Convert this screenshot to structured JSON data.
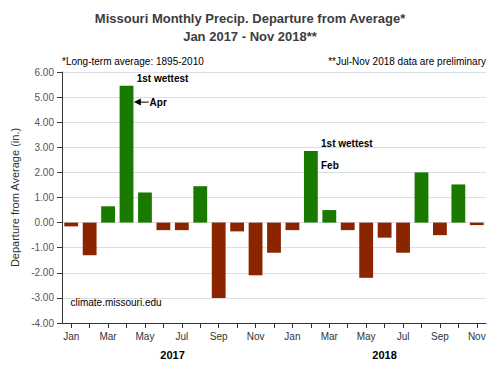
{
  "chart_data": {
    "type": "bar",
    "title": "Missouri Monthly Precip. Departure from Average*",
    "subtitle": "Jan 2017 - Nov 2018**",
    "footnote_left": "*Long-term average: 1895-2010",
    "footnote_right": "**Jul-Nov 2018 data are preliminary",
    "ylabel": "Departure from Average (in.)",
    "watermark": "climate.missouri.edu",
    "categories": [
      "Jan",
      null,
      "Mar",
      null,
      "May",
      null,
      "Jul",
      null,
      "Sep",
      null,
      "Nov",
      null,
      "Jan",
      null,
      "Mar",
      null,
      "May",
      null,
      "Jul",
      null,
      "Sep",
      null,
      "Nov"
    ],
    "values": [
      -0.15,
      -1.3,
      0.65,
      5.45,
      1.2,
      -0.3,
      -0.3,
      1.45,
      -3.0,
      -0.35,
      -2.1,
      -1.2,
      -0.3,
      2.85,
      0.5,
      -0.3,
      -2.2,
      -0.6,
      -1.2,
      2.0,
      -0.5,
      1.52,
      -0.1
    ],
    "colors": [
      "#8B2500",
      "#8B2500",
      "#1a7a00",
      "#1a7a00",
      "#1a7a00",
      "#8B2500",
      "#8B2500",
      "#1a7a00",
      "#8B2500",
      "#8B2500",
      "#8B2500",
      "#8B2500",
      "#8B2500",
      "#1a7a00",
      "#1a7a00",
      "#8B2500",
      "#8B2500",
      "#8B2500",
      "#8B2500",
      "#1a7a00",
      "#8B2500",
      "#1a7a00",
      "#8B2500"
    ],
    "ylim": [
      -4.0,
      6.0
    ],
    "yticks": [
      {
        "value": -4.0,
        "label": "-4.00"
      },
      {
        "value": -3.0,
        "label": "-3.00"
      },
      {
        "value": -2.0,
        "label": "-2.00"
      },
      {
        "value": -1.0,
        "label": "-1.00"
      },
      {
        "value": 0.0,
        "label": "0.00"
      },
      {
        "value": 1.0,
        "label": "1.00"
      },
      {
        "value": 2.0,
        "label": "2.00"
      },
      {
        "value": 3.0,
        "label": "3.00"
      },
      {
        "value": 4.0,
        "label": "4.00"
      },
      {
        "value": 5.0,
        "label": "5.00"
      },
      {
        "value": 6.0,
        "label": "6.00"
      }
    ],
    "grid": true,
    "x_group_labels": [
      "2017",
      "2018"
    ],
    "annotations": [
      {
        "value": 5.45,
        "texts": [
          "1st wettest",
          "Apr"
        ],
        "arrow": true
      },
      {
        "value": 2.85,
        "texts": [
          "1st wettest",
          "Feb"
        ],
        "arrow": false
      }
    ]
  }
}
